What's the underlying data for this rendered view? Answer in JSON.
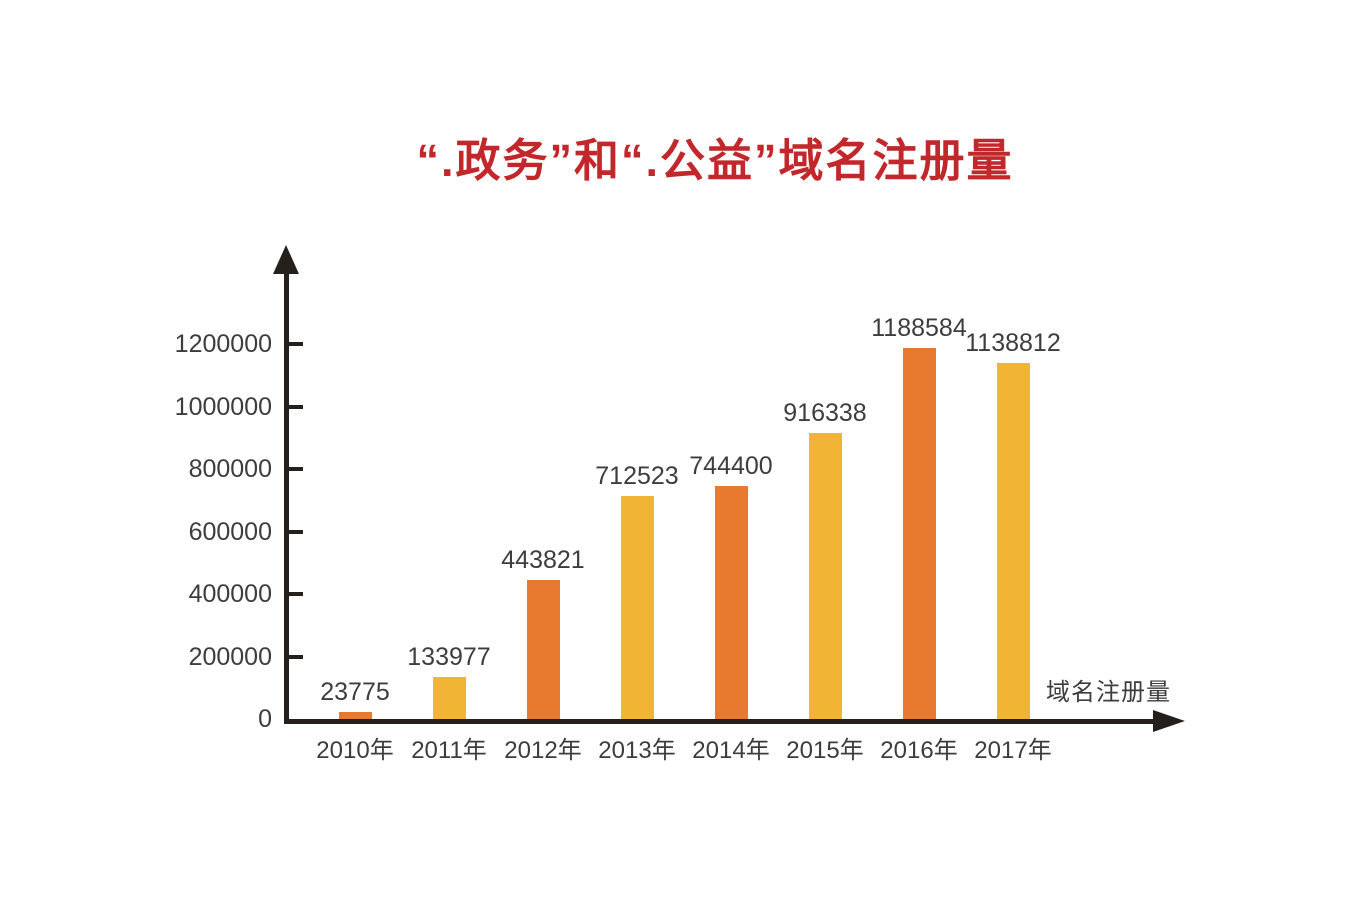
{
  "colors": {
    "title_red": "#c2272b",
    "orange": "#e87a30",
    "yellow": "#f2b434",
    "axis": "#26201d",
    "label_text": "#3d3d3d",
    "background": "#ffffff"
  },
  "chart_data": {
    "type": "bar",
    "title": "“.政务”和“.公益”域名注册量",
    "categories": [
      "2010年",
      "2011年",
      "2012年",
      "2013年",
      "2014年",
      "2015年",
      "2016年",
      "2017年"
    ],
    "values": [
      23775,
      133977,
      443821,
      712523,
      744400,
      916338,
      1188584,
      1138812
    ],
    "bar_colors": [
      "#e87a30",
      "#f2b434",
      "#e87a30",
      "#f2b434",
      "#e87a30",
      "#f2b434",
      "#e87a30",
      "#f2b434"
    ],
    "data_labels_shown": true,
    "xlabel": "域名注册量",
    "ylabel": "",
    "y_ticks": [
      0,
      200000,
      400000,
      600000,
      800000,
      1000000,
      1200000
    ],
    "ylim": [
      0,
      1200000
    ],
    "grid": false,
    "legend": "none",
    "axes_style": "arrow-tipped axis lines, tick marks outside y-axis"
  }
}
